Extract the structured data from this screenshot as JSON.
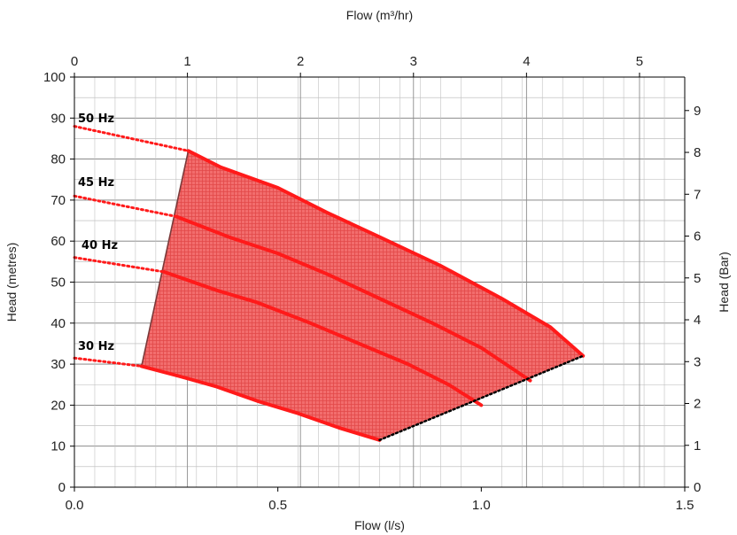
{
  "chart_data": {
    "type": "line",
    "xlabel": "Flow (l/s)",
    "x2label": "Flow (m³/hr)",
    "ylabel": "Head (metres)",
    "y2label": "Head (Bar)",
    "xlim": [
      0,
      1.5
    ],
    "ylim": [
      0,
      100
    ],
    "x2lim": [
      0,
      5.4
    ],
    "y2lim": [
      0,
      9.8
    ],
    "x_ticks": [
      "0.0",
      "0.5",
      "1.0",
      "1.5"
    ],
    "x2_ticks": [
      "0",
      "1",
      "2",
      "3",
      "4",
      "5"
    ],
    "y_ticks": [
      "0",
      "10",
      "20",
      "30",
      "40",
      "50",
      "60",
      "70",
      "80",
      "90",
      "100"
    ],
    "y2_ticks": [
      "0",
      "1",
      "2",
      "3",
      "4",
      "5",
      "6",
      "7",
      "8",
      "9"
    ],
    "grid": true,
    "colors": {
      "curve": "#ff1a1a",
      "region_fill": "#f07878",
      "grid": "#8c8c8c",
      "boundary_dotted": "#000000",
      "left_edge": "#7a3a3a"
    },
    "series": [
      {
        "name": "50 Hz",
        "dotted": [
          [
            0,
            88
          ],
          [
            0.28,
            82
          ]
        ],
        "solid": [
          [
            0.28,
            82
          ],
          [
            0.36,
            78
          ],
          [
            0.5,
            73
          ],
          [
            0.62,
            67
          ],
          [
            0.75,
            61
          ],
          [
            0.9,
            54
          ],
          [
            1.05,
            46
          ],
          [
            1.17,
            39
          ],
          [
            1.25,
            32
          ]
        ]
      },
      {
        "name": "45 Hz",
        "dotted": [
          [
            0,
            71
          ],
          [
            0.25,
            66
          ]
        ],
        "solid": [
          [
            0.25,
            66
          ],
          [
            0.38,
            61
          ],
          [
            0.5,
            57
          ],
          [
            0.62,
            52
          ],
          [
            0.75,
            46
          ],
          [
            0.88,
            40
          ],
          [
            1.0,
            34
          ],
          [
            1.12,
            26
          ]
        ]
      },
      {
        "name": "40 Hz",
        "dotted": [
          [
            0,
            56
          ],
          [
            0.22,
            52.5
          ]
        ],
        "solid": [
          [
            0.22,
            52.5
          ],
          [
            0.35,
            48
          ],
          [
            0.45,
            45
          ],
          [
            0.58,
            40
          ],
          [
            0.7,
            35
          ],
          [
            0.82,
            30
          ],
          [
            0.92,
            25
          ],
          [
            1.0,
            20
          ]
        ]
      },
      {
        "name": "30 Hz",
        "dotted": [
          [
            0,
            31.5
          ],
          [
            0.165,
            29.5
          ]
        ],
        "solid": [
          [
            0.165,
            29.5
          ],
          [
            0.26,
            27
          ],
          [
            0.35,
            24.5
          ],
          [
            0.45,
            21
          ],
          [
            0.55,
            18
          ],
          [
            0.65,
            14.5
          ],
          [
            0.75,
            11.5
          ]
        ]
      }
    ],
    "operating_region": [
      [
        0.165,
        29.5
      ],
      [
        0.28,
        82
      ],
      [
        0.36,
        78
      ],
      [
        0.5,
        73
      ],
      [
        0.62,
        67
      ],
      [
        0.75,
        61
      ],
      [
        0.9,
        54
      ],
      [
        1.05,
        46
      ],
      [
        1.17,
        39
      ],
      [
        1.25,
        32
      ],
      [
        0.75,
        11.5
      ],
      [
        0.65,
        14.5
      ],
      [
        0.55,
        18
      ],
      [
        0.45,
        21
      ],
      [
        0.35,
        24.5
      ],
      [
        0.26,
        27
      ]
    ],
    "end_of_curve_line": [
      [
        0.75,
        11.5
      ],
      [
        1.25,
        32
      ]
    ],
    "min_flow_line": [
      [
        0.165,
        29.5
      ],
      [
        0.28,
        82
      ]
    ]
  }
}
